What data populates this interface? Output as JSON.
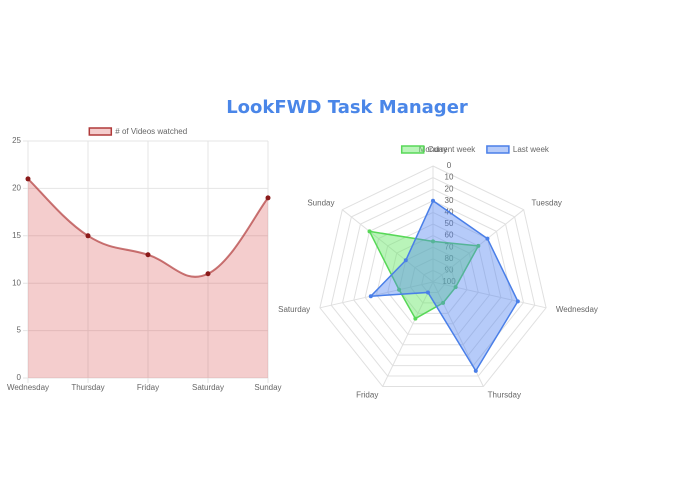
{
  "header": {
    "title": "LookFWD Task Manager"
  },
  "chart_data": [
    {
      "type": "line",
      "fill": true,
      "categories": [
        "Wednesday",
        "Thursday",
        "Friday",
        "Saturday",
        "Sunday"
      ],
      "series": [
        {
          "name": "# of Videos watched",
          "color": "#b03a3a",
          "fill_color": "rgba(220,100,100,0.32)",
          "values": [
            21,
            15,
            13,
            11,
            19
          ]
        }
      ],
      "ylim": [
        0,
        25
      ],
      "yticks": [
        0,
        5,
        10,
        15,
        20,
        25
      ],
      "grid": true,
      "legend": "top"
    },
    {
      "type": "radar",
      "categories": [
        "Monday",
        "Tuesday",
        "Wednesday",
        "Thursday",
        "Friday",
        "Saturday",
        "Sunday"
      ],
      "series": [
        {
          "name": "Current week",
          "color": "#58d858",
          "fill_color": "rgba(100,230,100,0.45)",
          "values": [
            65,
            50,
            80,
            80,
            65,
            70,
            30
          ]
        },
        {
          "name": "Last week",
          "color": "#4a7fe8",
          "fill_color": "rgba(80,130,240,0.42)",
          "values": [
            30,
            40,
            25,
            15,
            90,
            45,
            70
          ]
        }
      ],
      "rlim": [
        100,
        0
      ],
      "rticks": [
        0,
        10,
        20,
        30,
        40,
        50,
        60,
        70,
        80,
        90,
        100
      ],
      "grid": true,
      "legend": "top"
    }
  ]
}
